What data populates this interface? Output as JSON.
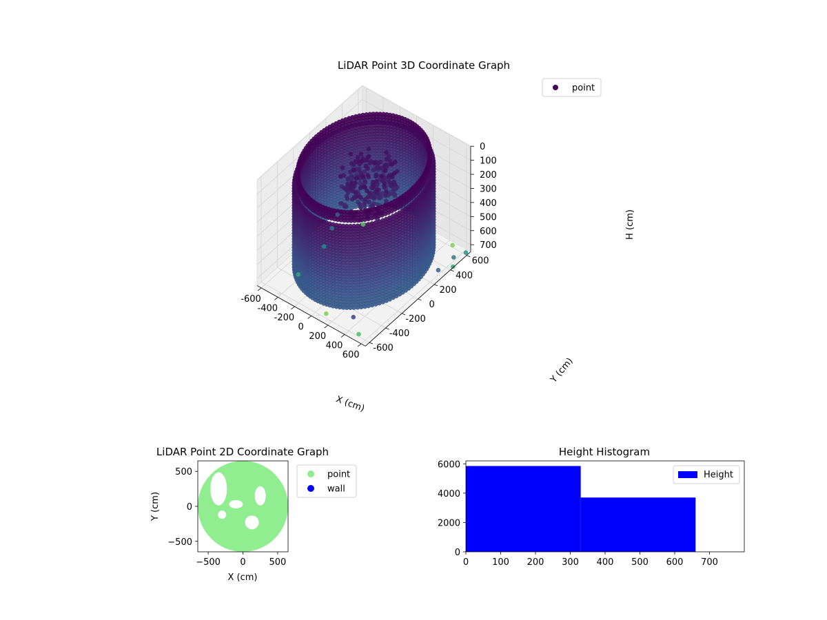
{
  "figure": {
    "background": "#ffffff"
  },
  "chart_data": [
    {
      "type": "scatter",
      "projection": "3d",
      "title": "LiDAR Point 3D Coordinate Graph",
      "xlabel": "X (cm)",
      "ylabel": "Y (cm)",
      "zlabel": "H (cm)",
      "xlim": [
        -650,
        650
      ],
      "ylim": [
        -650,
        650
      ],
      "zlim": [
        750,
        0
      ],
      "z_axis_inverted": true,
      "xticks": [
        "-600",
        "-400",
        "-200",
        "0",
        "200",
        "400",
        "600"
      ],
      "yticks": [
        "-600",
        "-400",
        "-200",
        "0",
        "200",
        "400",
        "600"
      ],
      "zticks": [
        "0",
        "100",
        "200",
        "300",
        "400",
        "500",
        "600",
        "700"
      ],
      "colormap": "viridis",
      "grid": true,
      "legend": {
        "position": "top-right",
        "entries": [
          {
            "name": "point",
            "color": "#440154"
          }
        ]
      },
      "series": [
        {
          "name": "point",
          "structure": "cylindrical wall of points, radius about 600 cm, height 0 to 660 cm, plus scattered outliers near floor level",
          "wall_radius": 600,
          "wall_height_range": [
            0,
            660
          ],
          "outliers": [
            {
              "x": -640,
              "y": -200,
              "h": 700
            },
            {
              "x": -560,
              "y": 250,
              "h": 680
            },
            {
              "x": -500,
              "y": 120,
              "h": 690
            },
            {
              "x": -420,
              "y": -60,
              "h": 700
            },
            {
              "x": -380,
              "y": -420,
              "h": 700
            },
            {
              "x": -300,
              "y": 300,
              "h": 690
            },
            {
              "x": 150,
              "y": -620,
              "h": 700
            },
            {
              "x": 380,
              "y": -520,
              "h": 700
            },
            {
              "x": 620,
              "y": 280,
              "h": 700
            },
            {
              "x": 640,
              "y": 450,
              "h": 690
            },
            {
              "x": 680,
              "y": 560,
              "h": 700
            },
            {
              "x": 700,
              "y": 380,
              "h": 700
            },
            {
              "x": 560,
              "y": -640,
              "h": 700
            },
            {
              "x": 520,
              "y": 560,
              "h": 700
            }
          ]
        }
      ]
    },
    {
      "type": "scatter",
      "title": "LiDAR Point 2D Coordinate Graph",
      "xlabel": "X (cm)",
      "ylabel": "Y (cm)",
      "xlim": [
        -650,
        650
      ],
      "ylim": [
        -650,
        650
      ],
      "xticks": [
        -500,
        0,
        500
      ],
      "yticks": [
        -500,
        0,
        500
      ],
      "legend": {
        "position": "right",
        "entries": [
          {
            "name": "point",
            "color": "#90ee90"
          },
          {
            "name": "wall",
            "color": "#0000ff"
          }
        ]
      },
      "series": [
        {
          "name": "point",
          "color": "#90ee90",
          "shape": "filled disc of radius about 650 cm with small empty gaps"
        },
        {
          "name": "wall",
          "color": "#0000ff",
          "points": []
        }
      ]
    },
    {
      "type": "bar",
      "title": "Height Histogram",
      "xlim": [
        0,
        800
      ],
      "ylim": [
        0,
        6200
      ],
      "xticks": [
        0,
        100,
        200,
        300,
        400,
        500,
        600,
        700
      ],
      "yticks": [
        0,
        2000,
        4000,
        6000
      ],
      "legend": {
        "position": "top-right",
        "entries": [
          {
            "name": "Height",
            "color": "#0000ff"
          }
        ]
      },
      "bins": [
        {
          "from": 0,
          "to": 330,
          "count": 5850
        },
        {
          "from": 330,
          "to": 660,
          "count": 3700
        }
      ],
      "color": "#0000ff"
    }
  ]
}
